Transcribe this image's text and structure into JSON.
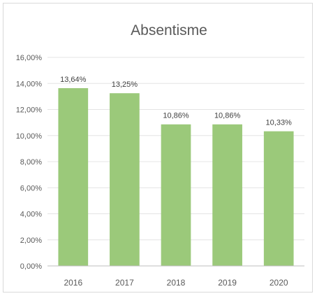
{
  "chart_data": {
    "type": "bar",
    "title": "Absentisme",
    "xlabel": "",
    "ylabel": "",
    "categories": [
      "2016",
      "2017",
      "2018",
      "2019",
      "2020"
    ],
    "values": [
      13.64,
      13.25,
      10.86,
      10.86,
      10.33
    ],
    "data_labels": [
      "13,64%",
      "13,25%",
      "10,86%",
      "10,86%",
      "10,33%"
    ],
    "yticks": [
      0,
      2,
      4,
      6,
      8,
      10,
      12,
      14,
      16
    ],
    "ytick_labels": [
      "0,00%",
      "2,00%",
      "4,00%",
      "6,00%",
      "8,00%",
      "10,00%",
      "12,00%",
      "14,00%",
      "16,00%"
    ],
    "ylim": [
      0,
      16
    ],
    "grid": true,
    "legend": "none",
    "bar_color": "#9bc97a"
  }
}
